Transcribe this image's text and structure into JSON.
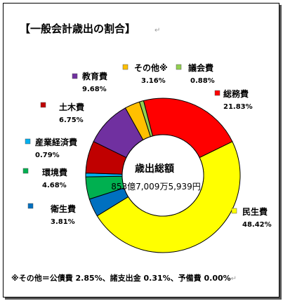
{
  "title": "【一般会計歳出の割合】",
  "return_mark": "↵",
  "footnote": "※その他＝公債費 2.85%、諸支出金 0.31%、予備費 0.00%",
  "chart_data": {
    "type": "pie",
    "donut": true,
    "center_label": "歳出総額",
    "center_value": "853億7,009万5,939円",
    "unit": "%",
    "categories": [
      "総務費",
      "民生費",
      "衛生費",
      "環境費",
      "産業経済費",
      "土木費",
      "教育費",
      "その他※",
      "議会費"
    ],
    "values": [
      21.83,
      48.42,
      3.81,
      4.68,
      0.79,
      6.75,
      9.68,
      3.16,
      0.88
    ],
    "value_labels": [
      "21.83%",
      "48.42%",
      "3.81%",
      "4.68%",
      "0.79%",
      "6.75%",
      "9.68%",
      "3.16%",
      "0.88%"
    ],
    "colors": [
      "#ff0000",
      "#ffff00",
      "#0070c0",
      "#00b050",
      "#00b0f0",
      "#c00000",
      "#7030a0",
      "#ffc000",
      "#92d050"
    ],
    "legend": "labels placed around the chart"
  }
}
